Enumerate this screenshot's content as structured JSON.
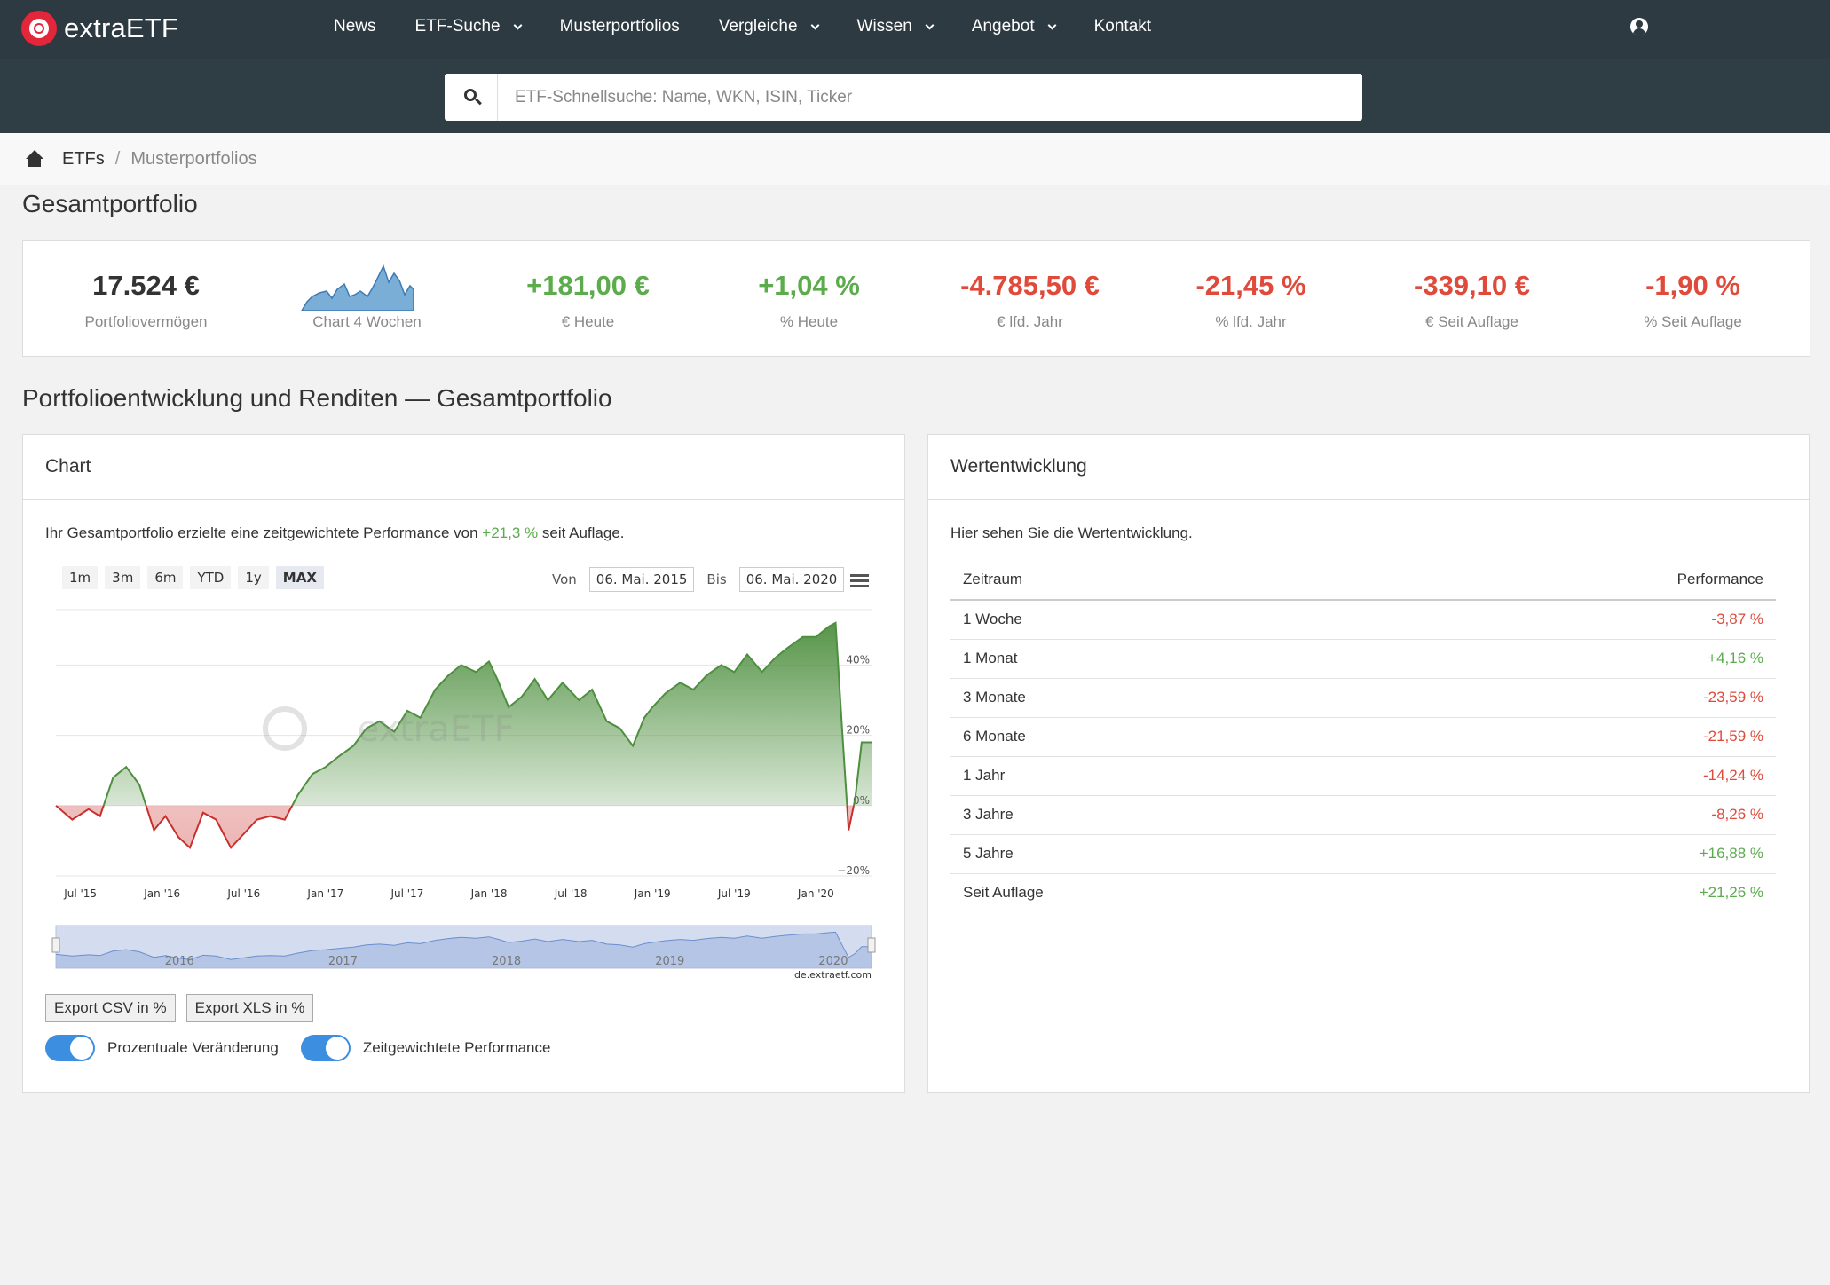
{
  "nav": {
    "logo_text": "extraETF",
    "items": [
      {
        "label": "News",
        "dropdown": false
      },
      {
        "label": "ETF-Suche",
        "dropdown": true
      },
      {
        "label": "Musterportfolios",
        "dropdown": false
      },
      {
        "label": "Vergleiche",
        "dropdown": true
      },
      {
        "label": "Wissen",
        "dropdown": true
      },
      {
        "label": "Angebot",
        "dropdown": true
      },
      {
        "label": "Kontakt",
        "dropdown": false
      }
    ]
  },
  "search": {
    "placeholder": "ETF-Schnellsuche: Name, WKN, ISIN, Ticker"
  },
  "breadcrumb": {
    "items": [
      "ETFs"
    ],
    "current": "Musterportfolios",
    "separator": "/"
  },
  "page_title": "Gesamtportfolio",
  "kpis": [
    {
      "value": "17.524 €",
      "label": "Portfoliovermögen",
      "tone": "dark"
    },
    {
      "value": "",
      "label": "Chart 4 Wochen",
      "tone": "spark"
    },
    {
      "value": "+181,00 €",
      "label": "€ Heute",
      "tone": "pos"
    },
    {
      "value": "+1,04 %",
      "label": "% Heute",
      "tone": "pos"
    },
    {
      "value": "-4.785,50 €",
      "label": "€ lfd. Jahr",
      "tone": "neg"
    },
    {
      "value": "-21,45 %",
      "label": "% lfd. Jahr",
      "tone": "neg"
    },
    {
      "value": "-339,10 €",
      "label": "€ Seit Auflage",
      "tone": "neg"
    },
    {
      "value": "-1,90 %",
      "label": "% Seit Auflage",
      "tone": "neg"
    }
  ],
  "section_title": "Portfolioentwicklung und Renditen — Gesamtportfolio",
  "chart_panel": {
    "title": "Chart",
    "intro_before": "Ihr Gesamtportfolio erzielte eine zeitgewichtete Performance von ",
    "intro_value": "+21,3 %",
    "intro_after": " seit Auflage.",
    "range_buttons": [
      "1m",
      "3m",
      "6m",
      "YTD",
      "1y",
      "MAX"
    ],
    "active_range": "MAX",
    "from_label": "Von",
    "from_date": "06. Mai. 2015",
    "to_label": "Bis",
    "to_date": "06. Mai. 2020",
    "watermark": "extraETF",
    "credit": "de.extraetf.com",
    "export_csv": "Export CSV in %",
    "export_xls": "Export XLS in %",
    "toggle_1": "Prozentuale Veränderung",
    "toggle_2": "Zeitgewichtete Performance"
  },
  "chart_data": {
    "type": "area",
    "title": "",
    "xlabel": "",
    "ylabel": "",
    "y_unit": "%",
    "ylim": [
      -20,
      55
    ],
    "y_ticks": [
      40,
      20,
      0,
      -20
    ],
    "y_tick_labels": [
      "40%",
      "20%",
      "0%",
      "−20%"
    ],
    "x_tick_labels": [
      "Jul '15",
      "Jan '16",
      "Jul '16",
      "Jan '17",
      "Jul '17",
      "Jan '18",
      "Jul '18",
      "Jan '19",
      "Jul '19",
      "Jan '20"
    ],
    "navigator_labels": [
      "2016",
      "2017",
      "2018",
      "2019",
      "2020"
    ],
    "grid": true,
    "colors": {
      "positive": "#4e8f3f",
      "negative": "#c9302c"
    },
    "x": [
      2015.35,
      2015.45,
      2015.55,
      2015.62,
      2015.7,
      2015.78,
      2015.86,
      2015.95,
      2016.02,
      2016.1,
      2016.17,
      2016.25,
      2016.33,
      2016.42,
      2016.5,
      2016.58,
      2016.66,
      2016.75,
      2016.83,
      2016.92,
      2017.0,
      2017.08,
      2017.17,
      2017.25,
      2017.33,
      2017.42,
      2017.5,
      2017.58,
      2017.67,
      2017.75,
      2017.83,
      2017.92,
      2018.0,
      2018.05,
      2018.12,
      2018.2,
      2018.28,
      2018.36,
      2018.45,
      2018.55,
      2018.63,
      2018.72,
      2018.8,
      2018.88,
      2018.95,
      2019.0,
      2019.08,
      2019.17,
      2019.25,
      2019.33,
      2019.42,
      2019.5,
      2019.58,
      2019.67,
      2019.75,
      2019.83,
      2019.92,
      2020.0,
      2020.08,
      2020.12,
      2020.16,
      2020.2,
      2020.24,
      2020.28,
      2020.34
    ],
    "series": [
      {
        "values": [
          0,
          -4,
          -1,
          -3,
          8,
          11,
          6,
          -7,
          -3,
          -9,
          -12,
          -2,
          -4,
          -12,
          -8,
          -4,
          -3,
          -4,
          3,
          9,
          11,
          14,
          17,
          22,
          24,
          21,
          27,
          25,
          33,
          37,
          40,
          38,
          41,
          36,
          28,
          31,
          36,
          30,
          35,
          30,
          33,
          24,
          22,
          17,
          25,
          28,
          32,
          35,
          33,
          37,
          40,
          38,
          43,
          38,
          42,
          45,
          48,
          48,
          51,
          52,
          22,
          -7,
          2,
          18,
          18
        ]
      }
    ]
  },
  "wert_panel": {
    "title": "Wertentwicklung",
    "intro": "Hier sehen Sie die Wertentwicklung.",
    "col_period": "Zeitraum",
    "col_perf": "Performance",
    "rows": [
      {
        "period": "1 Woche",
        "perf": "-3,87 %",
        "tone": "neg"
      },
      {
        "period": "1 Monat",
        "perf": "+4,16 %",
        "tone": "pos"
      },
      {
        "period": "3 Monate",
        "perf": "-23,59 %",
        "tone": "neg"
      },
      {
        "period": "6 Monate",
        "perf": "-21,59 %",
        "tone": "neg"
      },
      {
        "period": "1 Jahr",
        "perf": "-14,24 %",
        "tone": "neg"
      },
      {
        "period": "3 Jahre",
        "perf": "-8,26 %",
        "tone": "neg"
      },
      {
        "period": "5 Jahre",
        "perf": "+16,88 %",
        "tone": "pos"
      },
      {
        "period": "Seit Auflage",
        "perf": "+21,26 %",
        "tone": "pos"
      }
    ]
  }
}
